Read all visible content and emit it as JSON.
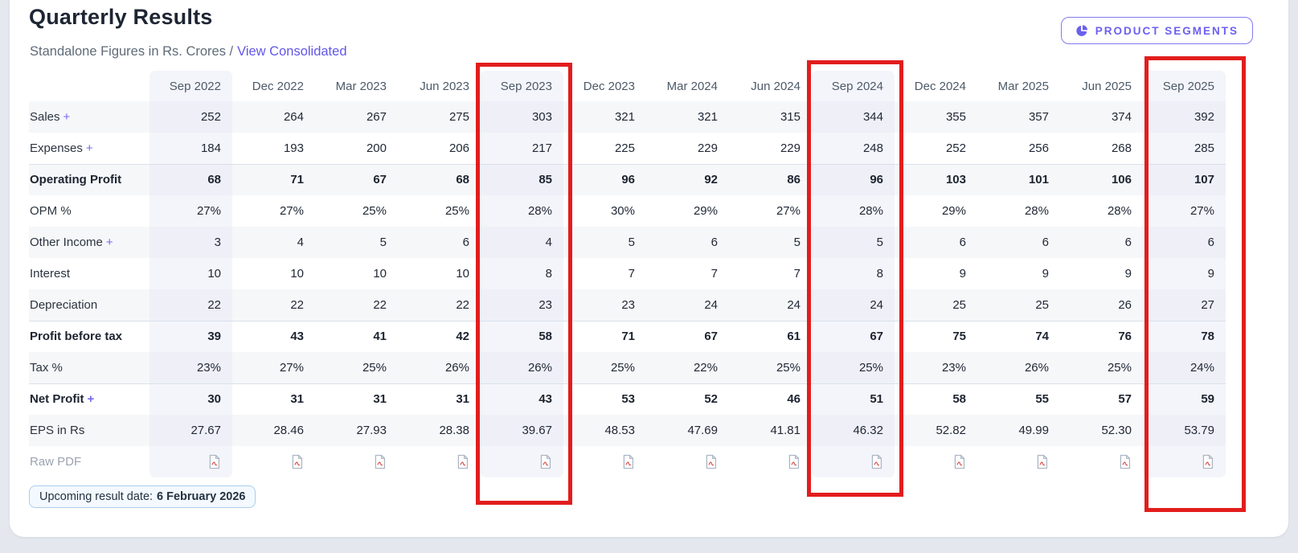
{
  "header": {
    "title": "Quarterly Results",
    "subtitle": "Standalone Figures in Rs. Crores /",
    "view_link": "View Consolidated",
    "segments_button": "PRODUCT SEGMENTS"
  },
  "colors": {
    "accent_purple": "#6b60ee",
    "link_purple": "#6157e8",
    "annotation_red": "#e21d1d",
    "column_highlight": "#f4f5fa",
    "row_stripe": "#f6f7f9",
    "chip_border": "#a9cdec"
  },
  "table": {
    "columns": [
      "Sep 2022",
      "Dec 2022",
      "Mar 2023",
      "Jun 2023",
      "Sep 2023",
      "Dec 2023",
      "Mar 2024",
      "Jun 2024",
      "Sep 2024",
      "Dec 2024",
      "Mar 2025",
      "Jun 2025",
      "Sep 2025"
    ],
    "highlighted_column_indexes": [
      0,
      4,
      8,
      12
    ],
    "rows": [
      {
        "label": "Sales",
        "plus": true,
        "bold": false,
        "separator": false,
        "values": [
          "252",
          "264",
          "267",
          "275",
          "303",
          "321",
          "321",
          "315",
          "344",
          "355",
          "357",
          "374",
          "392"
        ]
      },
      {
        "label": "Expenses",
        "plus": true,
        "bold": false,
        "separator": false,
        "values": [
          "184",
          "193",
          "200",
          "206",
          "217",
          "225",
          "229",
          "229",
          "248",
          "252",
          "256",
          "268",
          "285"
        ]
      },
      {
        "label": "Operating Profit",
        "plus": false,
        "bold": true,
        "separator": true,
        "values": [
          "68",
          "71",
          "67",
          "68",
          "85",
          "96",
          "92",
          "86",
          "96",
          "103",
          "101",
          "106",
          "107"
        ]
      },
      {
        "label": "OPM %",
        "plus": false,
        "bold": false,
        "separator": false,
        "values": [
          "27%",
          "27%",
          "25%",
          "25%",
          "28%",
          "30%",
          "29%",
          "27%",
          "28%",
          "29%",
          "28%",
          "28%",
          "27%"
        ]
      },
      {
        "label": "Other Income",
        "plus": true,
        "bold": false,
        "separator": false,
        "values": [
          "3",
          "4",
          "5",
          "6",
          "4",
          "5",
          "6",
          "5",
          "5",
          "6",
          "6",
          "6",
          "6"
        ]
      },
      {
        "label": "Interest",
        "plus": false,
        "bold": false,
        "separator": false,
        "values": [
          "10",
          "10",
          "10",
          "10",
          "8",
          "7",
          "7",
          "7",
          "8",
          "9",
          "9",
          "9",
          "9"
        ]
      },
      {
        "label": "Depreciation",
        "plus": false,
        "bold": false,
        "separator": false,
        "values": [
          "22",
          "22",
          "22",
          "22",
          "23",
          "23",
          "24",
          "24",
          "24",
          "25",
          "25",
          "26",
          "27"
        ]
      },
      {
        "label": "Profit before tax",
        "plus": false,
        "bold": true,
        "separator": true,
        "values": [
          "39",
          "43",
          "41",
          "42",
          "58",
          "71",
          "67",
          "61",
          "67",
          "75",
          "74",
          "76",
          "78"
        ]
      },
      {
        "label": "Tax %",
        "plus": false,
        "bold": false,
        "separator": false,
        "values": [
          "23%",
          "27%",
          "25%",
          "26%",
          "26%",
          "25%",
          "22%",
          "25%",
          "25%",
          "23%",
          "26%",
          "25%",
          "24%"
        ]
      },
      {
        "label": "Net Profit",
        "plus": true,
        "bold": true,
        "separator": true,
        "values": [
          "30",
          "31",
          "31",
          "31",
          "43",
          "53",
          "52",
          "46",
          "51",
          "58",
          "55",
          "57",
          "59"
        ]
      },
      {
        "label": "EPS in Rs",
        "plus": false,
        "bold": false,
        "separator": false,
        "values": [
          "27.67",
          "28.46",
          "27.93",
          "28.38",
          "39.67",
          "48.53",
          "47.69",
          "41.81",
          "46.32",
          "52.82",
          "49.99",
          "52.30",
          "53.79"
        ]
      },
      {
        "label": "Raw PDF",
        "plus": false,
        "bold": false,
        "separator": false,
        "type": "pdf"
      }
    ]
  },
  "annotations": {
    "red_boxed_columns": [
      "Sep 2023",
      "Sep 2024",
      "Sep 2025"
    ]
  },
  "footer": {
    "upcoming_label": "Upcoming result date:",
    "upcoming_date": "6 February 2026"
  }
}
